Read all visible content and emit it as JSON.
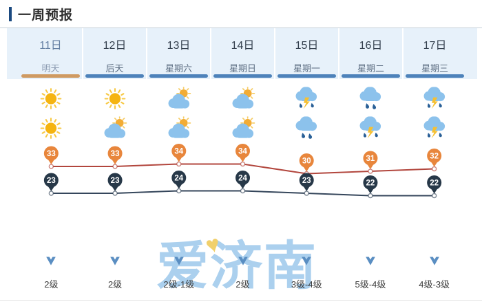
{
  "header": {
    "title": "一周预报"
  },
  "days": [
    {
      "date": "11日",
      "label": "明天",
      "selected": true,
      "day_icon": "sunny-icon",
      "night_icon": "sunny-icon",
      "high": 33,
      "low": 23,
      "wind_level": "2级"
    },
    {
      "date": "12日",
      "label": "后天",
      "selected": false,
      "day_icon": "sunny-icon",
      "night_icon": "partly-cloudy-icon",
      "high": 33,
      "low": 23,
      "wind_level": "2级"
    },
    {
      "date": "13日",
      "label": "星期六",
      "selected": false,
      "day_icon": "partly-cloudy-icon",
      "night_icon": "partly-cloudy-icon",
      "high": 34,
      "low": 24,
      "wind_level": "2级-1级"
    },
    {
      "date": "14日",
      "label": "星期日",
      "selected": false,
      "day_icon": "partly-cloudy-icon",
      "night_icon": "partly-cloudy-icon",
      "high": 34,
      "low": 24,
      "wind_level": "2级"
    },
    {
      "date": "15日",
      "label": "星期一",
      "selected": false,
      "day_icon": "thunderstorm-icon",
      "night_icon": "rain-icon",
      "high": 30,
      "low": 23,
      "wind_level": "3级-4级"
    },
    {
      "date": "16日",
      "label": "星期二",
      "selected": false,
      "day_icon": "rain-icon",
      "night_icon": "thunderstorm-icon",
      "high": 31,
      "low": 22,
      "wind_level": "5级-4级"
    },
    {
      "date": "17日",
      "label": "星期三",
      "selected": false,
      "day_icon": "thunderstorm-icon",
      "night_icon": "thunderstorm-icon",
      "high": 32,
      "low": 22,
      "wind_level": "4级-3级"
    }
  ],
  "wind_icon": "chevron-down-icon",
  "chart_data": {
    "type": "line",
    "categories": [
      "11日",
      "12日",
      "13日",
      "14日",
      "15日",
      "16日",
      "17日"
    ],
    "series": [
      {
        "name": "high",
        "values": [
          33,
          33,
          34,
          34,
          30,
          31,
          32
        ],
        "line_color": "#b2463d",
        "marker_color": "#e8863c"
      },
      {
        "name": "low",
        "values": [
          23,
          23,
          24,
          24,
          23,
          22,
          22
        ],
        "line_color": "#35465b",
        "marker_color": "#273848"
      }
    ],
    "unit": "度",
    "legend": "none",
    "grid": "off"
  },
  "watermark": {
    "text": "爱济南",
    "heart_icon": "heart-icon",
    "heart_glyph": "♥"
  },
  "colors": {
    "header_bar_blue": "#1b4a80",
    "tab_bg": "#e7f1fa",
    "tab_underline_blue": "#4d82ba",
    "tab_underline_orange_selected": "#cf9a62",
    "high_line": "#b2463d",
    "high_marker": "#e8863c",
    "low_line": "#35465b",
    "low_marker": "#273848",
    "wind_arrow_blue": "#5a8ec2",
    "watermark_blue": "#abd0ee",
    "heart_yellow": "#f1d06c"
  }
}
